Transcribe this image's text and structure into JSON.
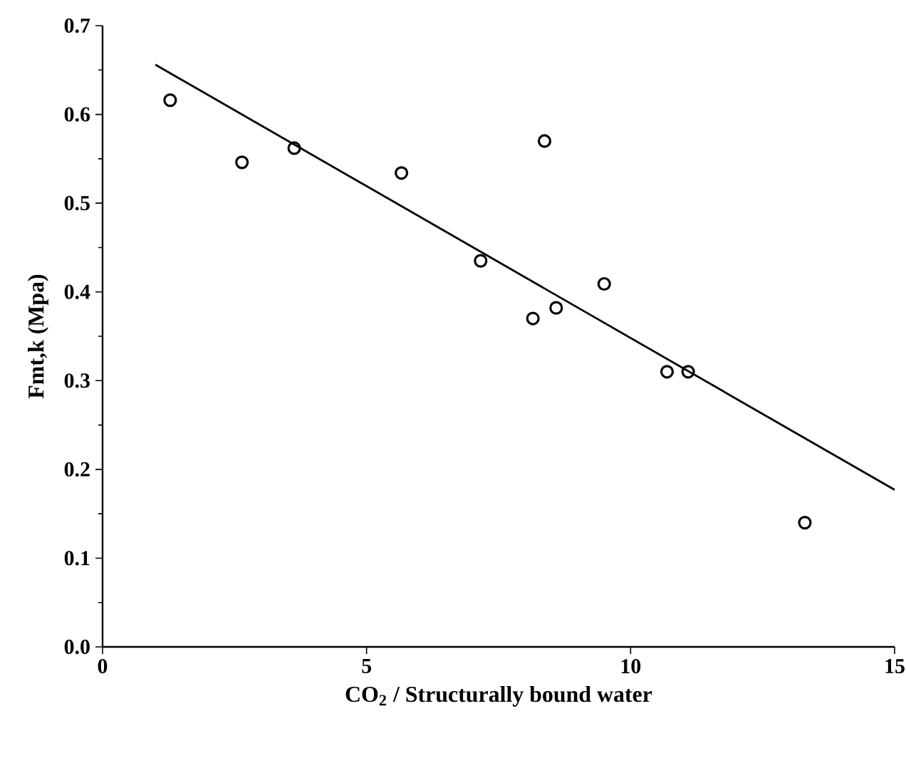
{
  "chart_data": {
    "type": "scatter",
    "xlabel": "CO$_{2}$ / Structurally bound water",
    "ylabel": "Fmt,k (Mpa)",
    "xlim": [
      0,
      15
    ],
    "ylim": [
      0,
      0.7
    ],
    "xticks": [
      0,
      5,
      10,
      15
    ],
    "yticks": [
      {
        "value": 0,
        "label": "0.0"
      },
      0.1,
      0.2,
      0.3,
      0.4,
      0.5,
      0.6,
      0.7
    ],
    "grid": false,
    "marker": "circle",
    "series": [
      {
        "color": "#000000",
        "x": [
          1.28,
          2.64,
          3.63,
          5.66,
          7.16,
          8.37,
          8.15,
          8.59,
          9.5,
          10.69,
          11.09,
          13.3
        ],
        "values": [
          0.616,
          0.546,
          0.562,
          0.534,
          0.435,
          0.57,
          0.37,
          0.382,
          0.409,
          0.31,
          0.31,
          0.14
        ]
      },
      {
        "type": "line",
        "color": "#000000",
        "line_style": "solid",
        "marker": "none",
        "x": [
          1,
          15
        ],
        "values": [
          0.656,
          0.177
        ]
      }
    ]
  }
}
